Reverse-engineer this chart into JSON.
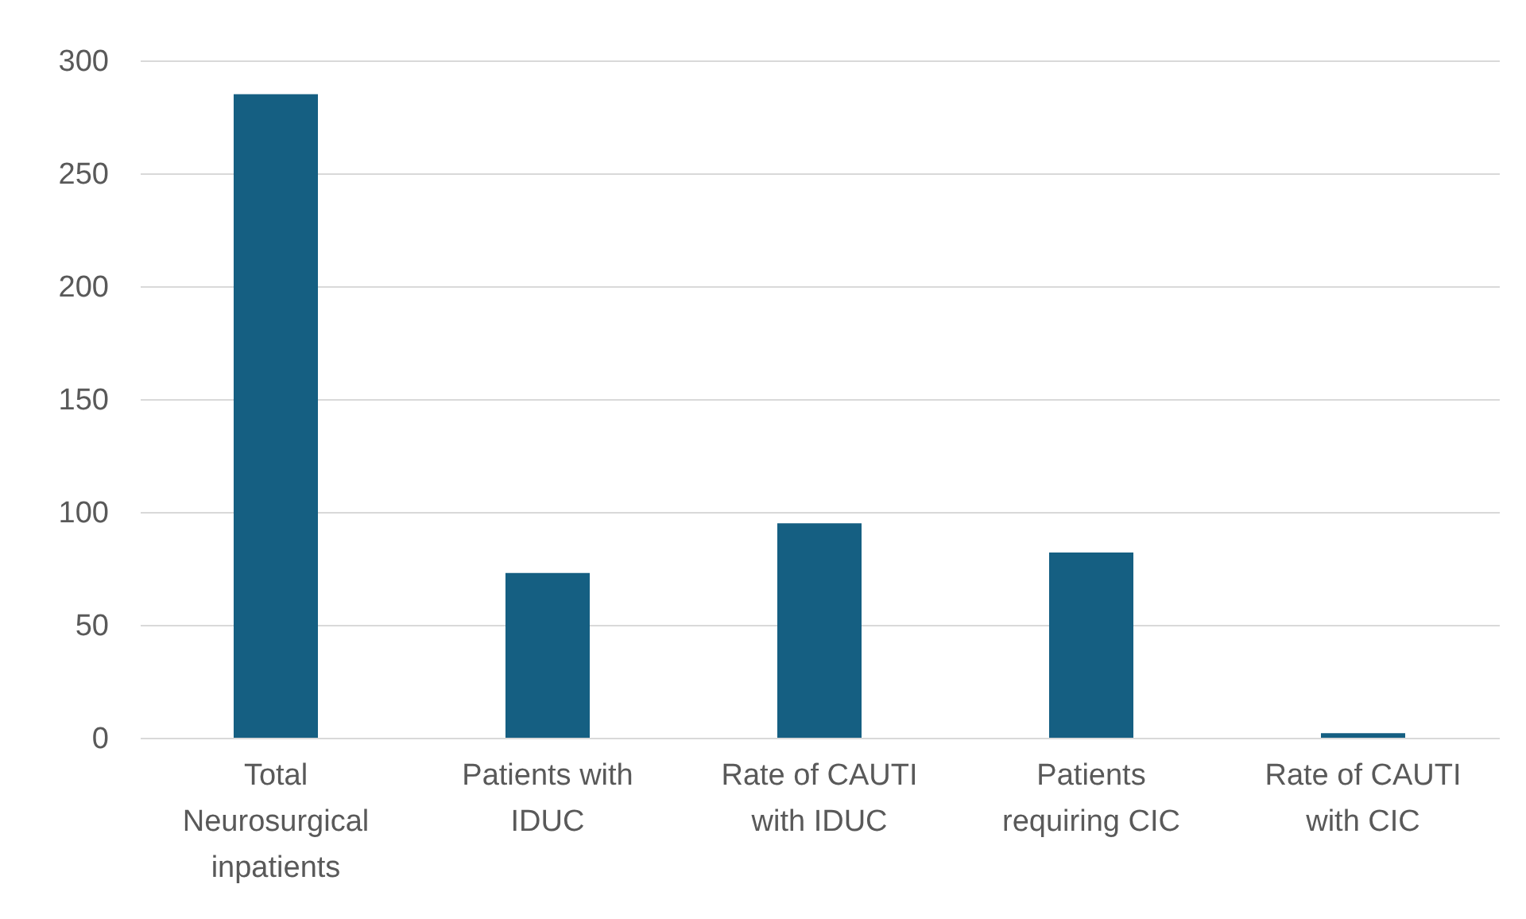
{
  "chart_data": {
    "type": "bar",
    "categories": [
      "Total Neurosurgical inpatients",
      "Patients with IDUC",
      "Rate of CAUTI with IDUC",
      "Patients requiring CIC",
      "Rate of CAUTI with CIC"
    ],
    "values": [
      285,
      73,
      95,
      82,
      2
    ],
    "color": "#155f82",
    "ylim": [
      0,
      300
    ],
    "yticks": [
      0,
      50,
      100,
      150,
      200,
      250,
      300
    ],
    "grid": "y"
  }
}
